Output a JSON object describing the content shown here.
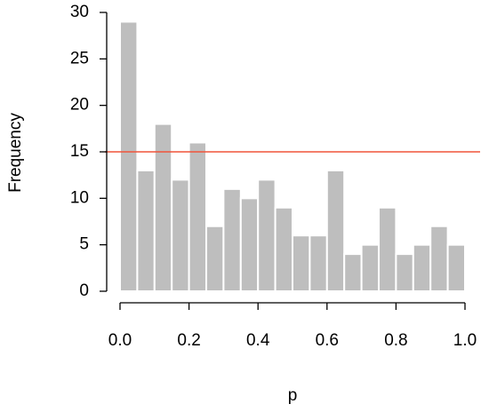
{
  "chart_data": {
    "type": "histogram",
    "xlabel": "p",
    "ylabel": "Frequency",
    "bins": [
      0,
      0.05,
      0.1,
      0.15,
      0.2,
      0.25,
      0.3,
      0.35,
      0.4,
      0.45,
      0.5,
      0.55,
      0.6,
      0.65,
      0.7,
      0.75,
      0.8,
      0.85,
      0.9,
      0.95,
      1
    ],
    "values": [
      29,
      13,
      18,
      12,
      16,
      7,
      11,
      10,
      12,
      9,
      6,
      6,
      13,
      4,
      5,
      9,
      4,
      5,
      7,
      5
    ],
    "color": "#bebebe",
    "reference_line": {
      "value": 15,
      "color": "#f0533a"
    },
    "xlim": [
      0,
      1
    ],
    "ylim": [
      0,
      30
    ],
    "xticks": [
      {
        "value": 0,
        "label": "0.0"
      },
      {
        "value": 0.2,
        "label": "0.2"
      },
      {
        "value": 0.4,
        "label": "0.4"
      },
      {
        "value": 0.6,
        "label": "0.6"
      },
      {
        "value": 0.8,
        "label": "0.8"
      },
      {
        "value": 1,
        "label": "1.0"
      }
    ],
    "yticks": [
      0,
      5,
      10,
      15,
      20,
      25,
      30
    ]
  }
}
